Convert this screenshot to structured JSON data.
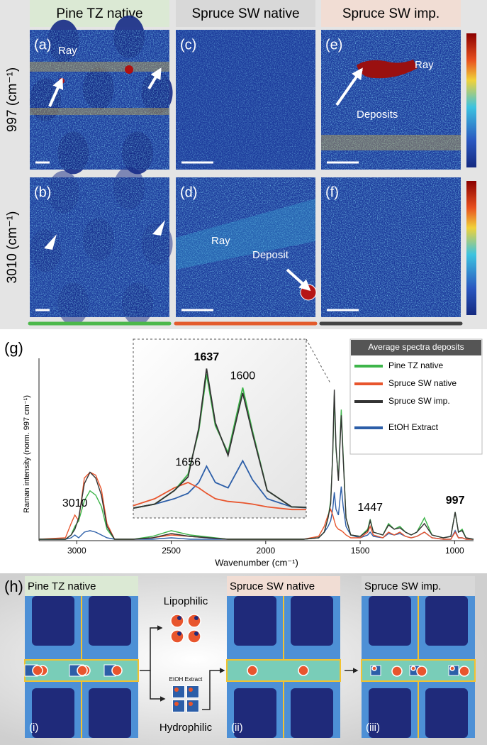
{
  "panels": {
    "columns": [
      "Pine TZ native",
      "Spruce SW native",
      "Spruce SW imp."
    ],
    "rows": [
      "997 (cm⁻¹)",
      "3010 (cm⁻¹)"
    ],
    "maps": [
      {
        "label": "(a)",
        "annotations": [
          "Ray"
        ]
      },
      {
        "label": "(c)",
        "annotations": []
      },
      {
        "label": "(e)",
        "annotations": [
          "Ray",
          "Deposits"
        ]
      },
      {
        "label": "(b)",
        "annotations": []
      },
      {
        "label": "(d)",
        "annotations": [
          "Ray",
          "Deposit"
        ]
      },
      {
        "label": "(f)",
        "annotations": []
      }
    ]
  },
  "chart_data": {
    "type": "line",
    "label": "(g)",
    "x_label": "Wavenumber (cm⁻¹)",
    "y_label": "Raman intensity (norm. 997 cm⁻¹)",
    "legend_title": "Average spectra deposits",
    "xlim": [
      3200,
      900
    ],
    "ylim": [
      0,
      6.4
    ],
    "xticks": [
      3000,
      2500,
      2000,
      1500,
      1000
    ],
    "x": [
      3200,
      3060,
      3030,
      3010,
      2990,
      2960,
      2930,
      2900,
      2870,
      2840,
      2800,
      2700,
      2600,
      2500,
      2400,
      2200,
      1800,
      1720,
      1690,
      1670,
      1656,
      1645,
      1637,
      1628,
      1615,
      1600,
      1590,
      1575,
      1550,
      1500,
      1460,
      1447,
      1430,
      1380,
      1350,
      1320,
      1290,
      1260,
      1230,
      1200,
      1160,
      1120,
      1060,
      1020,
      997,
      980,
      960,
      940,
      900
    ],
    "series": [
      {
        "name": "EtOH Extract",
        "color": "#2c5ea8",
        "values": [
          0.05,
          0.05,
          0.1,
          0.2,
          0.1,
          0.3,
          0.35,
          0.3,
          0.2,
          0.1,
          0.05,
          0.05,
          0.05,
          0.1,
          0.05,
          0.05,
          0.05,
          0.1,
          0.3,
          0.5,
          0.7,
          1.1,
          1.7,
          1.1,
          0.9,
          1.9,
          1.2,
          0.5,
          0.2,
          0.1,
          0.2,
          0.3,
          0.15,
          0.1,
          0.25,
          0.2,
          0.25,
          0.15,
          0.1,
          0.15,
          0.3,
          0.1,
          0.05,
          0.05,
          0.35,
          0.1,
          0.1,
          0.05,
          0.05
        ]
      },
      {
        "name": "Spruce SW native",
        "color": "#e8552d",
        "values": [
          0.05,
          0.1,
          0.6,
          0.9,
          0.7,
          2.2,
          2.4,
          2.3,
          1.8,
          0.6,
          0.05,
          0.05,
          0.1,
          0.2,
          0.15,
          0.05,
          0.05,
          0.15,
          0.5,
          0.9,
          1.1,
          0.9,
          0.7,
          0.5,
          0.4,
          0.35,
          0.3,
          0.2,
          0.1,
          0.1,
          0.3,
          0.5,
          0.2,
          0.1,
          0.3,
          0.2,
          0.3,
          0.15,
          0.1,
          0.15,
          0.3,
          0.1,
          0.05,
          0.05,
          0.3,
          0.1,
          0.1,
          0.05,
          0.05
        ]
      },
      {
        "name": "Pine TZ native",
        "color": "#3db54a",
        "values": [
          0.05,
          0.05,
          0.2,
          0.5,
          0.7,
          1.4,
          1.75,
          1.6,
          1.2,
          0.4,
          0.05,
          0.05,
          0.15,
          0.35,
          0.2,
          0.05,
          0.05,
          0.1,
          0.3,
          0.8,
          1.4,
          3.0,
          5.1,
          3.2,
          2.2,
          4.6,
          3.0,
          0.8,
          0.2,
          0.15,
          0.4,
          0.75,
          0.3,
          0.2,
          0.6,
          0.4,
          0.5,
          0.3,
          0.2,
          0.3,
          0.8,
          0.2,
          0.1,
          0.15,
          1.0,
          0.3,
          0.4,
          0.1,
          0.05
        ]
      },
      {
        "name": "Spruce SW imp.",
        "color": "#333333",
        "values": [
          0.05,
          0.05,
          0.2,
          0.4,
          0.8,
          2.0,
          2.4,
          2.2,
          1.6,
          0.5,
          0.05,
          0.05,
          0.1,
          0.25,
          0.15,
          0.05,
          0.05,
          0.1,
          0.3,
          0.8,
          1.3,
          3.1,
          5.3,
          3.3,
          2.1,
          4.4,
          2.9,
          0.8,
          0.2,
          0.15,
          0.35,
          0.7,
          0.3,
          0.2,
          0.55,
          0.4,
          0.45,
          0.3,
          0.2,
          0.3,
          0.6,
          0.2,
          0.1,
          0.15,
          1.0,
          0.3,
          0.35,
          0.1,
          0.05
        ]
      }
    ],
    "legend_order": [
      2,
      1,
      3,
      0
    ],
    "annotations": [
      {
        "text": "3010"
      },
      {
        "text": "1447"
      },
      {
        "text": "997",
        "bold": true
      }
    ],
    "inset": {
      "xlim": [
        1712,
        1535
      ],
      "ylim": [
        0,
        5.55
      ],
      "annotations": [
        {
          "text": "1637",
          "bold": true
        },
        {
          "text": "1600"
        },
        {
          "text": "1656"
        }
      ]
    }
  },
  "scheme": {
    "label": "(h)",
    "columns": [
      "Pine TZ native",
      "Spruce SW native",
      "Spruce SW imp."
    ],
    "steps": [
      "(i)",
      "(ii)",
      "(iii)"
    ],
    "lipophilic": "Lipophilic",
    "extract": "EtOH Extract",
    "hydrophilic": "Hydrophilic"
  }
}
